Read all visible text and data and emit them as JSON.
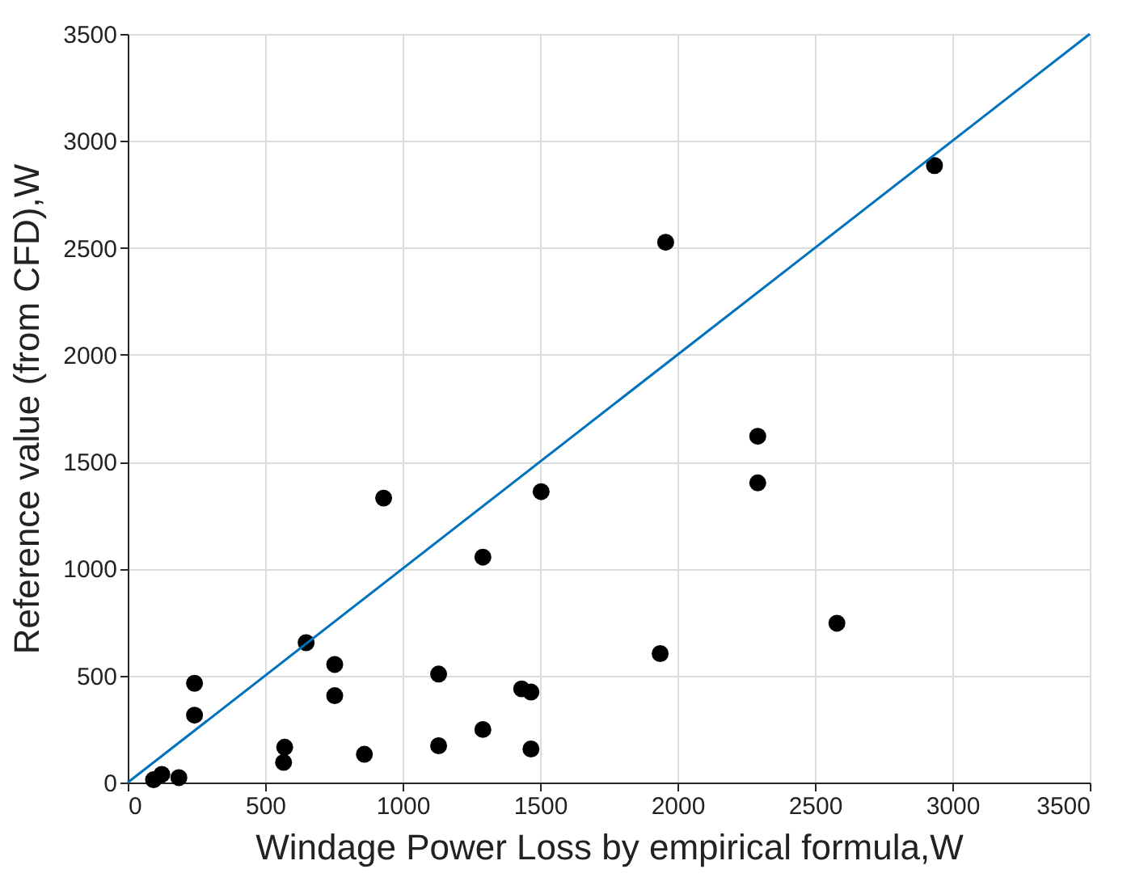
{
  "chart_data": {
    "type": "scatter",
    "xlabel": "Windage Power Loss by empirical formula,W",
    "ylabel": "Reference value (from CFD),W",
    "xlim": [
      0,
      3500
    ],
    "ylim": [
      0,
      3500
    ],
    "xticks": [
      0,
      500,
      1000,
      1500,
      2000,
      2500,
      3000,
      3500
    ],
    "yticks": [
      0,
      500,
      1000,
      1500,
      2000,
      2500,
      3000,
      3500
    ],
    "grid": true,
    "marker": "circle",
    "series": [
      {
        "color": "#000000",
        "x": [
          94,
          124,
          186,
          243,
          243,
          571,
          567,
          649,
          753,
          753,
          861,
          931,
          1131,
          1131,
          1292,
          1292,
          1433,
          1467,
          1467,
          1504,
          1937,
          1957,
          2292,
          2292,
          2580,
          2935
        ],
        "values": [
          13,
          38,
          23,
          464,
          315,
          165,
          94,
          654,
          552,
          406,
          132,
          1330,
          507,
          172,
          1054,
          248,
          438,
          423,
          157,
          1360,
          603,
          2526,
          1619,
          1401,
          745,
          2885
        ]
      },
      {
        "type": "line",
        "color": "#0072bd",
        "marker": "none",
        "x": [
          0,
          3500
        ],
        "values": [
          0,
          3500
        ]
      }
    ]
  }
}
